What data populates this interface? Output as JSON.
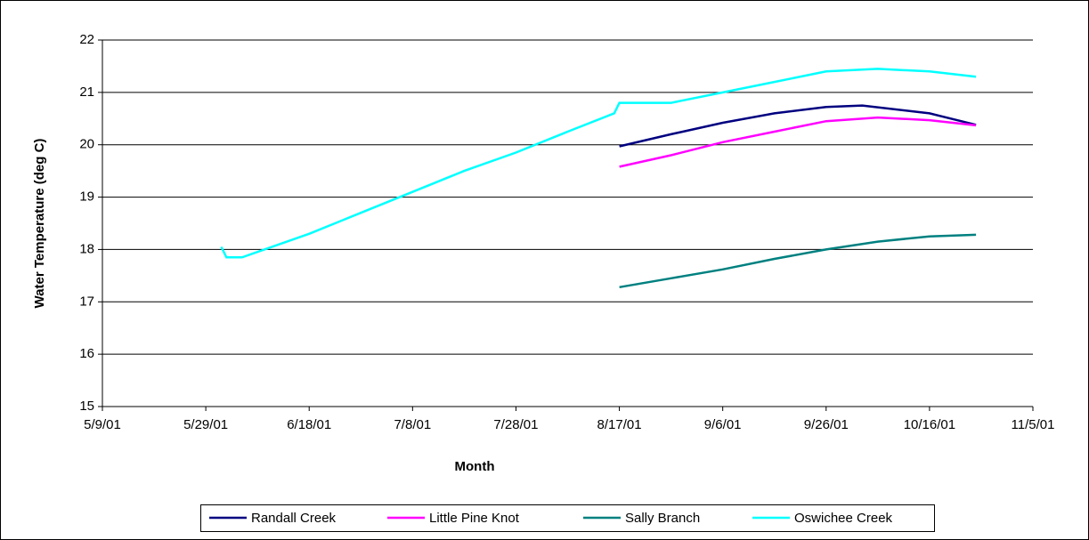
{
  "chart_data": {
    "type": "line",
    "x_label": "Month",
    "y_label": "Water Temperature (deg C)",
    "xlim": [
      "5/9/01",
      "11/5/01"
    ],
    "xticks": [
      "5/9/01",
      "5/29/01",
      "6/18/01",
      "7/8/01",
      "7/28/01",
      "8/17/01",
      "9/6/01",
      "9/26/01",
      "10/16/01",
      "11/5/01"
    ],
    "ylim": [
      15,
      22
    ],
    "yticks": [
      15,
      16,
      17,
      18,
      19,
      20,
      21,
      22
    ],
    "grid": true,
    "legend": "bottom",
    "series": [
      {
        "name": "Randall Creek",
        "color": "#000080",
        "x": [
          "8/17/01",
          "8/27/01",
          "9/6/01",
          "9/16/01",
          "9/26/01",
          "10/3/01",
          "10/16/01",
          "10/25/01"
        ],
        "values": [
          19.97,
          20.2,
          20.42,
          20.6,
          20.72,
          20.75,
          20.6,
          20.38
        ]
      },
      {
        "name": "Little Pine Knot",
        "color": "#ff00ff",
        "x": [
          "8/17/01",
          "8/27/01",
          "9/6/01",
          "9/16/01",
          "9/26/01",
          "10/6/01",
          "10/16/01",
          "10/25/01"
        ],
        "values": [
          19.58,
          19.8,
          20.05,
          20.25,
          20.45,
          20.52,
          20.47,
          20.37
        ]
      },
      {
        "name": "Sally Branch",
        "color": "#008080",
        "x": [
          "8/17/01",
          "8/27/01",
          "9/6/01",
          "9/16/01",
          "9/26/01",
          "10/6/01",
          "10/16/01",
          "10/25/01"
        ],
        "values": [
          17.28,
          17.45,
          17.62,
          17.82,
          18.0,
          18.15,
          18.25,
          18.28
        ]
      },
      {
        "name": "Oswichee Creek",
        "color": "#00ffff",
        "x": [
          "6/1/01",
          "6/2/01",
          "6/5/01",
          "6/18/01",
          "6/28/01",
          "7/8/01",
          "7/18/01",
          "7/28/01",
          "8/7/01",
          "8/16/01",
          "8/17/01",
          "8/27/01",
          "9/6/01",
          "9/16/01",
          "9/26/01",
          "10/6/01",
          "10/16/01",
          "10/25/01"
        ],
        "values": [
          18.05,
          17.85,
          17.85,
          18.3,
          18.7,
          19.1,
          19.5,
          19.85,
          20.25,
          20.6,
          20.8,
          20.8,
          21.0,
          21.2,
          21.4,
          21.45,
          21.4,
          21.3
        ]
      }
    ]
  }
}
